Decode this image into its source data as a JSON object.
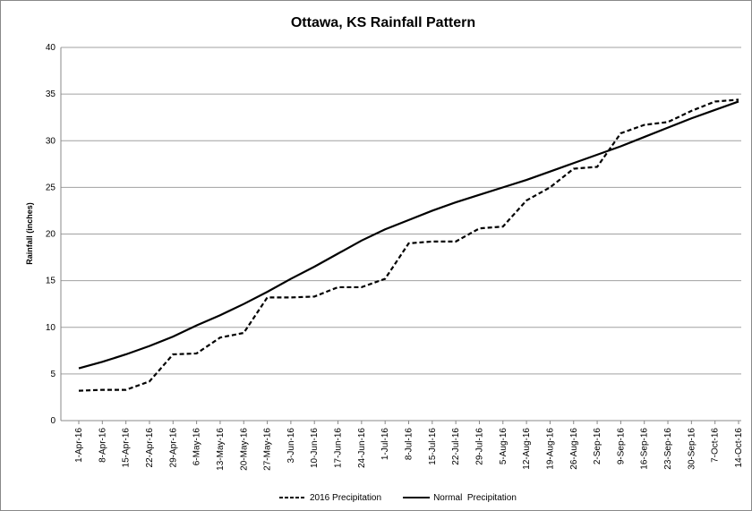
{
  "chart_data": {
    "type": "line",
    "title": "Ottawa, KS Rainfall Pattern",
    "y_label": "Rainfall (inches)",
    "categories": [
      "1-Apr-16",
      "8-Apr-16",
      "15-Apr-16",
      "22-Apr-16",
      "29-Apr-16",
      "6-May-16",
      "13-May-16",
      "20-May-16",
      "27-May-16",
      "3-Jun-16",
      "10-Jun-16",
      "17-Jun-16",
      "24-Jun-16",
      "1-Jul-16",
      "8-Jul-16",
      "15-Jul-16",
      "22-Jul-16",
      "29-Jul-16",
      "5-Aug-16",
      "12-Aug-16",
      "19-Aug-16",
      "26-Aug-16",
      "2-Sep-16",
      "9-Sep-16",
      "16-Sep-16",
      "23-Sep-16",
      "30-Sep-16",
      "7-Oct-16",
      "14-Oct-16"
    ],
    "series": [
      {
        "name": "2016 Precipitation",
        "color": "#000000",
        "line_style": "dashed",
        "values": [
          3.2,
          3.3,
          3.3,
          4.2,
          7.1,
          7.2,
          8.9,
          9.4,
          13.2,
          13.2,
          13.3,
          14.3,
          14.3,
          15.2,
          19.0,
          19.2,
          19.2,
          20.6,
          20.8,
          23.6,
          25.0,
          27.0,
          27.2,
          30.8,
          31.7,
          32.0,
          33.2,
          34.2,
          34.4
        ]
      },
      {
        "name": "Normal  Precipitation",
        "color": "#000000",
        "line_style": "solid",
        "values": [
          5.6,
          6.3,
          7.1,
          8.0,
          9.0,
          10.2,
          11.3,
          12.5,
          13.8,
          15.2,
          16.5,
          17.9,
          19.3,
          20.5,
          21.5,
          22.5,
          23.4,
          24.2,
          25.0,
          25.8,
          26.7,
          27.6,
          28.5,
          29.4,
          30.4,
          31.4,
          32.4,
          33.3,
          34.2
        ]
      }
    ],
    "ylim": [
      0,
      40
    ],
    "yticks": [
      0,
      5,
      10,
      15,
      20,
      25,
      30,
      35,
      40
    ],
    "grid": true,
    "legend": "bottom"
  }
}
